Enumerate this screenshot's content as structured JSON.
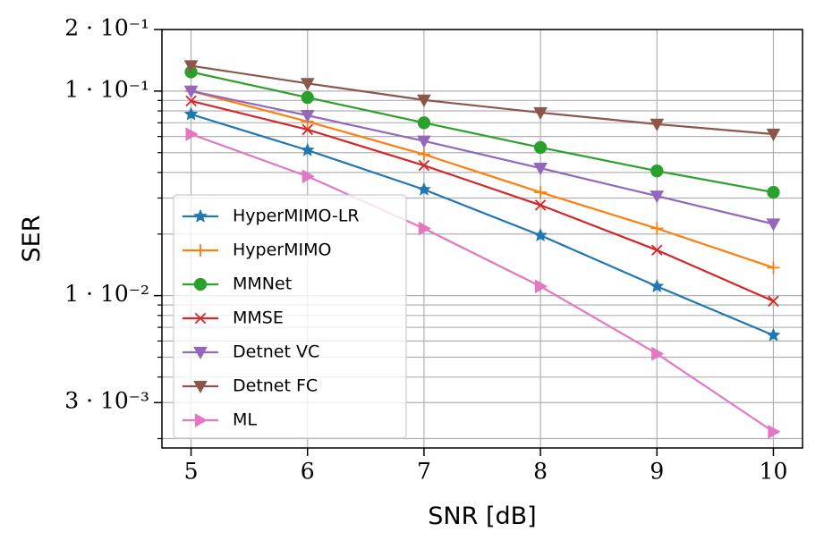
{
  "chart_data": {
    "type": "line",
    "x_label": "SNR [dB]",
    "y_label": "SER",
    "log_y": true,
    "grid": true,
    "legend": "lower left",
    "x": [
      5,
      6,
      7,
      8,
      9,
      10
    ],
    "xlim": [
      4.75,
      10.25
    ],
    "xticks": [
      5,
      6,
      7,
      8,
      9,
      10
    ],
    "ylim": [
      0.0018,
      0.2
    ],
    "yticks": [
      {
        "value": 0.003,
        "label": "3 · 10⁻³"
      },
      {
        "value": 0.01,
        "label": "1 · 10⁻²"
      },
      {
        "value": 0.1,
        "label": "1 · 10⁻¹"
      },
      {
        "value": 0.2,
        "label": "2 · 10⁻¹"
      }
    ],
    "yminor": [
      0.002,
      0.004,
      0.005,
      0.006,
      0.007,
      0.008,
      0.009,
      0.02,
      0.03,
      0.04,
      0.05,
      0.06,
      0.07,
      0.08,
      0.09
    ],
    "series": [
      {
        "name": "HyperMIMO-LR",
        "color": "#1f77b4",
        "marker": "star",
        "values": [
          0.077,
          0.0514,
          0.033,
          0.0197,
          0.0111,
          0.0064
        ]
      },
      {
        "name": "HyperMIMO",
        "color": "#ff7f0e",
        "marker": "plus",
        "values": [
          0.1,
          0.071,
          0.049,
          0.032,
          0.0213,
          0.0137
        ]
      },
      {
        "name": "MMNet",
        "color": "#2ca02c",
        "marker": "circle",
        "values": [
          0.124,
          0.093,
          0.07,
          0.053,
          0.0407,
          0.032
        ]
      },
      {
        "name": "MMSE",
        "color": "#d62728",
        "marker": "x",
        "values": [
          0.0895,
          0.0648,
          0.0433,
          0.0277,
          0.0167,
          0.0094
        ]
      },
      {
        "name": "Detnet VC",
        "color": "#9467bd",
        "marker": "tri-down",
        "values": [
          0.1,
          0.076,
          0.057,
          0.042,
          0.0307,
          0.0224
        ]
      },
      {
        "name": "Detnet FC",
        "color": "#8c564b",
        "marker": "tri-down",
        "values": [
          0.133,
          0.109,
          0.0904,
          0.0785,
          0.0689,
          0.0616
        ]
      },
      {
        "name": "ML",
        "color": "#e377c2",
        "marker": "tri-right",
        "values": [
          0.0616,
          0.0383,
          0.0213,
          0.0111,
          0.0052,
          0.00216
        ]
      }
    ]
  }
}
